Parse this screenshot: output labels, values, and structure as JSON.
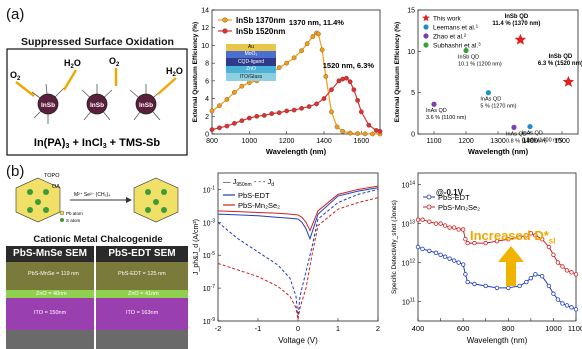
{
  "panel_a": {
    "label": "(a)",
    "schematic": {
      "title": "Suppressed Surface Oxidation",
      "qd_label": "InSb",
      "o2": "O",
      "o2_sub": "2",
      "h2o_a": "H",
      "h2o_sub": "2",
      "h2o_b": "O",
      "reaction_a": "In(PA)",
      "reaction_sub": "3",
      "reaction_b": " + InCl",
      "reaction_sub2": "3",
      "reaction_c": " + TMS-Sb"
    },
    "device_stack": [
      "Au",
      "MoO₃",
      "CQD-ligand",
      "ZnO",
      "ITO/Glass"
    ]
  },
  "panel_b": {
    "label": "(b)",
    "schematic_labels": [
      "TOPO",
      "OA",
      "Pb atom",
      "S atom",
      "M²⁺ Se²⁻ (CH₃)₄"
    ],
    "caption": "Cationic Metal Chalcogenide",
    "sem_left": {
      "title": "PbS-MnSe SEM",
      "layers": [
        "PbS-MnSe = 119 nm",
        "ZnO = 40nm",
        "ITO = 150nm"
      ]
    },
    "sem_right": {
      "title": "PbS-EDT SEM",
      "layers": [
        "PbS-EDT = 125 nm",
        "ZnO = 41nm",
        "ITO = 163nm"
      ]
    },
    "annotation": "Increased D*",
    "annotation_sub": "sl",
    "bias": "@-0.1V"
  },
  "colors": {
    "orange": "#f39c12",
    "red": "#e03030",
    "blue": "#1f3fbf",
    "title_red": "#e02020",
    "sem_layer_top": "#7a7a3a",
    "sem_layer_mid": "#8fd14f",
    "sem_layer_bot": "#9a3fb0"
  },
  "chart_data": [
    {
      "type": "line",
      "id": "eqe",
      "xlabel": "Wavelength (nm)",
      "ylabel": "External Quantum Efficiency (%)",
      "xlim": [
        800,
        1700
      ],
      "ylim": [
        0,
        14
      ],
      "xticks": [
        800,
        1000,
        1200,
        1400,
        1600
      ],
      "yticks": [
        0,
        2,
        4,
        6,
        8,
        10,
        12,
        14
      ],
      "legend_position": "top-left",
      "series": [
        {
          "name": "InSb 1370nm",
          "color": "#f39c12",
          "x": [
            800,
            840,
            880,
            920,
            960,
            1000,
            1040,
            1080,
            1120,
            1160,
            1200,
            1240,
            1280,
            1310,
            1340,
            1360,
            1370,
            1390,
            1410,
            1440,
            1470,
            1500,
            1540,
            1580,
            1620,
            1660,
            1700
          ],
          "y": [
            2.6,
            3.2,
            3.9,
            4.7,
            5.4,
            5.8,
            6.0,
            6.3,
            6.9,
            7.5,
            8.0,
            8.6,
            9.4,
            10.2,
            11.0,
            11.4,
            11.3,
            9.5,
            6.5,
            2.5,
            0.8,
            0.3,
            0.1,
            0.05,
            0.02,
            0.01,
            0.01
          ]
        },
        {
          "name": "InSb 1520nm",
          "color": "#e03030",
          "x": [
            800,
            840,
            880,
            920,
            960,
            1000,
            1040,
            1080,
            1120,
            1160,
            1200,
            1240,
            1280,
            1320,
            1360,
            1400,
            1440,
            1480,
            1500,
            1520,
            1540,
            1560,
            1580,
            1600,
            1640,
            1680,
            1700
          ],
          "y": [
            0.5,
            0.7,
            0.9,
            1.2,
            1.5,
            1.8,
            2.0,
            2.1,
            2.3,
            2.4,
            2.6,
            2.7,
            2.9,
            3.1,
            3.4,
            4.0,
            5.0,
            6.0,
            6.2,
            6.3,
            5.9,
            5.0,
            3.8,
            2.5,
            1.0,
            0.4,
            0.3
          ]
        }
      ],
      "annotations": [
        "1370 nm, 11.4%",
        "1520 nm, 6.3%"
      ]
    },
    {
      "type": "scatter",
      "id": "comparison",
      "xlabel": "Wavelength (nm)",
      "ylabel": "External Quantum Efficiency (%)",
      "xlim": [
        1050,
        1550
      ],
      "ylim": [
        0,
        15
      ],
      "xticks": [
        1100,
        1200,
        1300,
        1400,
        1500
      ],
      "yticks": [
        0,
        5,
        10,
        15
      ],
      "legend": [
        {
          "name": "This work",
          "color": "#e02020",
          "marker": "star"
        },
        {
          "name": "Leemans et al.",
          "sup": "1",
          "color": "#1e90c8",
          "marker": "circle"
        },
        {
          "name": "Zhao et al.",
          "sup": "2",
          "color": "#7b3fb0",
          "marker": "circle"
        },
        {
          "name": "Subhashri et al.",
          "sup": "3",
          "color": "#3aa03a",
          "marker": "circle"
        }
      ],
      "points": [
        {
          "x": 1370,
          "y": 11.4,
          "color": "#e02020",
          "marker": "star",
          "label": [
            "InSb QD",
            "11.4 % (1370 nm)"
          ],
          "bold": true
        },
        {
          "x": 1520,
          "y": 6.3,
          "color": "#e02020",
          "marker": "star",
          "label": [
            "InSb QD",
            "6.3 % (1520 nm)"
          ],
          "bold": true
        },
        {
          "x": 1200,
          "y": 10.1,
          "color": "#3aa03a",
          "marker": "circle",
          "label": [
            "InSb QD",
            "10.1 % (1200 nm)"
          ]
        },
        {
          "x": 1100,
          "y": 3.6,
          "color": "#7b3fb0",
          "marker": "circle",
          "label": [
            "InAs QD",
            "3.6 % (1100 nm)"
          ]
        },
        {
          "x": 1270,
          "y": 5.0,
          "color": "#1e90c8",
          "marker": "circle",
          "label": [
            "InAs QD",
            "5 % (1270 nm)"
          ]
        },
        {
          "x": 1350,
          "y": 0.8,
          "color": "#7b3fb0",
          "marker": "circle",
          "label": [
            "InAs QD",
            "0.8 % (1350 nm)"
          ]
        },
        {
          "x": 1400,
          "y": 0.9,
          "color": "#1e90c8",
          "marker": "circle",
          "label": [
            "InAs QD",
            "0.9 % (1400 nm)"
          ]
        }
      ]
    },
    {
      "type": "line",
      "id": "jv",
      "xlabel": "Voltage (V)",
      "ylabel": "J_ph&J_d (A/cm²)",
      "xlim": [
        -2,
        2
      ],
      "ylim_log": [
        -9,
        0
      ],
      "xticks": [
        -2,
        -1,
        0,
        1,
        2
      ],
      "yticks_exp": [
        -9,
        -7,
        -5,
        -3,
        -1
      ],
      "legend_header": [
        "J",
        "950nm",
        "- - - J",
        "d"
      ],
      "series": [
        {
          "name": "PbS-EDT",
          "color": "#1f3fbf",
          "photo": {
            "x": [
              -2,
              -1.5,
              -1,
              -0.5,
              -0.2,
              0,
              0.1,
              0.2,
              0.3,
              0.5,
              1,
              1.5,
              2
            ],
            "y": [
              -2.5,
              -2.55,
              -2.6,
              -2.7,
              -2.75,
              -2.8,
              -3.0,
              -3.4,
              -4.0,
              -2.5,
              -1.4,
              -1.1,
              -0.9
            ]
          },
          "dark": {
            "x": [
              -2,
              -1.5,
              -1,
              -0.5,
              -0.2,
              -0.05,
              0,
              0.05,
              0.2,
              0.35,
              0.5,
              1,
              1.5,
              2
            ],
            "y": [
              -3.0,
              -4.0,
              -4.8,
              -5.6,
              -6.4,
              -7.5,
              -8.8,
              -7.5,
              -6.0,
              -4.5,
              -2.8,
              -1.8,
              -1.3,
              -1.0
            ]
          }
        },
        {
          "name": "PbS-Mn₂Se₂",
          "color": "#d02020",
          "photo": {
            "x": [
              -2,
              -1.5,
              -1,
              -0.5,
              -0.2,
              0,
              0.1,
              0.2,
              0.3,
              0.5,
              1,
              1.5,
              2
            ],
            "y": [
              -2.3,
              -2.35,
              -2.4,
              -2.45,
              -2.5,
              -2.55,
              -2.7,
              -3.0,
              -3.5,
              -2.3,
              -1.3,
              -1.0,
              -0.8
            ]
          },
          "dark": {
            "x": [
              -2,
              -1.5,
              -1,
              -0.5,
              -0.2,
              -0.05,
              0,
              0.05,
              0.2,
              0.35,
              0.5,
              1,
              1.5,
              2
            ],
            "y": [
              -5.5,
              -5.9,
              -6.3,
              -6.9,
              -7.5,
              -8.2,
              -8.9,
              -8.2,
              -7.0,
              -5.0,
              -3.2,
              -2.2,
              -1.8,
              -1.5
            ]
          }
        }
      ]
    },
    {
      "type": "line",
      "id": "detectivity",
      "xlabel": "Wavelength (nm)",
      "ylabel": "Specific Detectivity_shot (Jones)",
      "xlim": [
        400,
        1100
      ],
      "ylim_log": [
        10.5,
        14.3
      ],
      "xticks": [
        400,
        500,
        600,
        700,
        800,
        900,
        1000,
        1100
      ],
      "yticks_exp": [
        11,
        12,
        13,
        14
      ],
      "series": [
        {
          "name": "PbS-EDT",
          "color": "#1f3fbf",
          "x": [
            400,
            420,
            450,
            480,
            500,
            520,
            540,
            560,
            580,
            600,
            610,
            620,
            650,
            700,
            750,
            800,
            850,
            880,
            900,
            920,
            950,
            980,
            1000,
            1020,
            1040,
            1060,
            1080,
            1100
          ],
          "y": [
            12.4,
            12.35,
            12.3,
            12.25,
            12.2,
            12.15,
            12.1,
            12.05,
            12.0,
            11.95,
            11.7,
            11.5,
            11.45,
            11.4,
            11.35,
            11.35,
            11.4,
            11.5,
            11.6,
            11.7,
            11.65,
            11.4,
            11.2,
            11.05,
            10.95,
            10.9,
            10.85,
            10.8
          ]
        },
        {
          "name": "PbS-Mn₂Se₂",
          "color": "#d02020",
          "x": [
            400,
            420,
            450,
            480,
            500,
            520,
            540,
            560,
            580,
            600,
            610,
            620,
            650,
            700,
            750,
            800,
            850,
            880,
            900,
            920,
            950,
            980,
            1000,
            1020,
            1040,
            1060,
            1080,
            1100
          ],
          "y": [
            13.1,
            13.1,
            13.05,
            13.0,
            13.0,
            12.95,
            12.9,
            12.9,
            12.85,
            12.85,
            12.6,
            12.5,
            12.5,
            12.5,
            12.55,
            12.6,
            12.65,
            12.7,
            12.75,
            12.7,
            12.6,
            12.4,
            12.2,
            12.0,
            11.9,
            11.8,
            11.75,
            11.7
          ]
        }
      ]
    }
  ]
}
